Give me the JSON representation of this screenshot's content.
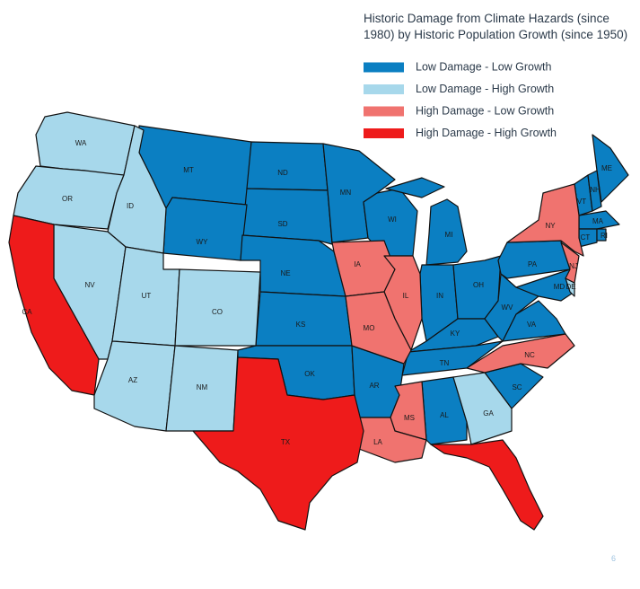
{
  "title": [
    "Historic Damage from Climate Hazards (since",
    "1980) by Historic Population Growth (since 1950)"
  ],
  "legend": [
    {
      "label": "Low Damage - Low Growth",
      "color": "#0b7fc2",
      "states": [
        "MT",
        "ND",
        "SD",
        "WY",
        "NE",
        "KS",
        "OK",
        "MN",
        "WI",
        "MI",
        "IN",
        "OH",
        "KY",
        "TN",
        "AR",
        "AL",
        "SC",
        "WV",
        "VA",
        "PA",
        "MD",
        "ME",
        "VT",
        "NH",
        "MA",
        "CT",
        "RI"
      ]
    },
    {
      "label": "Low Damage - High Growth",
      "color": "#a7d8eb",
      "states": [
        "WA",
        "OR",
        "ID",
        "NV",
        "UT",
        "CO",
        "AZ",
        "NM",
        "GA",
        "DE"
      ]
    },
    {
      "label": "High Damage - Low Growth",
      "color": "#f0736f",
      "states": [
        "IA",
        "IL",
        "MO",
        "MS",
        "LA",
        "NC",
        "NY",
        "NJ"
      ]
    },
    {
      "label": "High Damage - High Growth",
      "color": "#ee1b1b",
      "states": [
        "CA",
        "TX",
        null
      ]
    }
  ],
  "page_number": "6"
}
